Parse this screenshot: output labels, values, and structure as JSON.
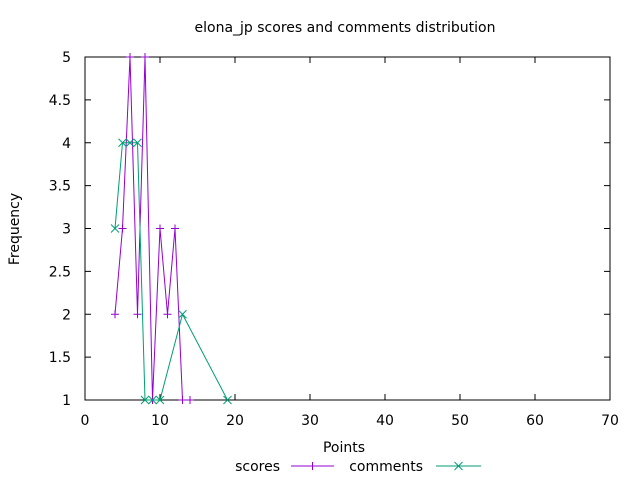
{
  "chart_data": {
    "type": "line",
    "title": "elona_jp scores and comments distribution",
    "xlabel": "Points",
    "ylabel": "Frequency",
    "xlim": [
      0,
      70
    ],
    "ylim": [
      1,
      5
    ],
    "xticks": [
      0,
      10,
      20,
      30,
      40,
      50,
      60,
      70
    ],
    "yticks": [
      1,
      1.5,
      2,
      2.5,
      3,
      3.5,
      4,
      4.5,
      5
    ],
    "xtick_labels": [
      "0",
      "10",
      "20",
      "30",
      "40",
      "50",
      "60",
      "70"
    ],
    "ytick_labels": [
      "1",
      "1.5",
      "2",
      "2.5",
      "3",
      "3.5",
      "4",
      "4.5",
      "5"
    ],
    "grid": false,
    "legend_position": "bottom-center",
    "series": [
      {
        "name": "scores",
        "color": "#9400d3",
        "marker": "plus",
        "points": [
          [
            4,
            2
          ],
          [
            5,
            3
          ],
          [
            6,
            5
          ],
          [
            7,
            2
          ],
          [
            8,
            5
          ],
          [
            9,
            1
          ],
          [
            10,
            3
          ],
          [
            11,
            2
          ],
          [
            12,
            3
          ],
          [
            13,
            1
          ],
          [
            14,
            1
          ]
        ]
      },
      {
        "name": "comments",
        "color": "#009e73",
        "marker": "cross",
        "points": [
          [
            4,
            3
          ],
          [
            5,
            4
          ],
          [
            6,
            4
          ],
          [
            7,
            4
          ],
          [
            8,
            1
          ],
          [
            9,
            1
          ],
          [
            10,
            1
          ],
          [
            13,
            2
          ],
          [
            19,
            1
          ]
        ]
      }
    ]
  }
}
